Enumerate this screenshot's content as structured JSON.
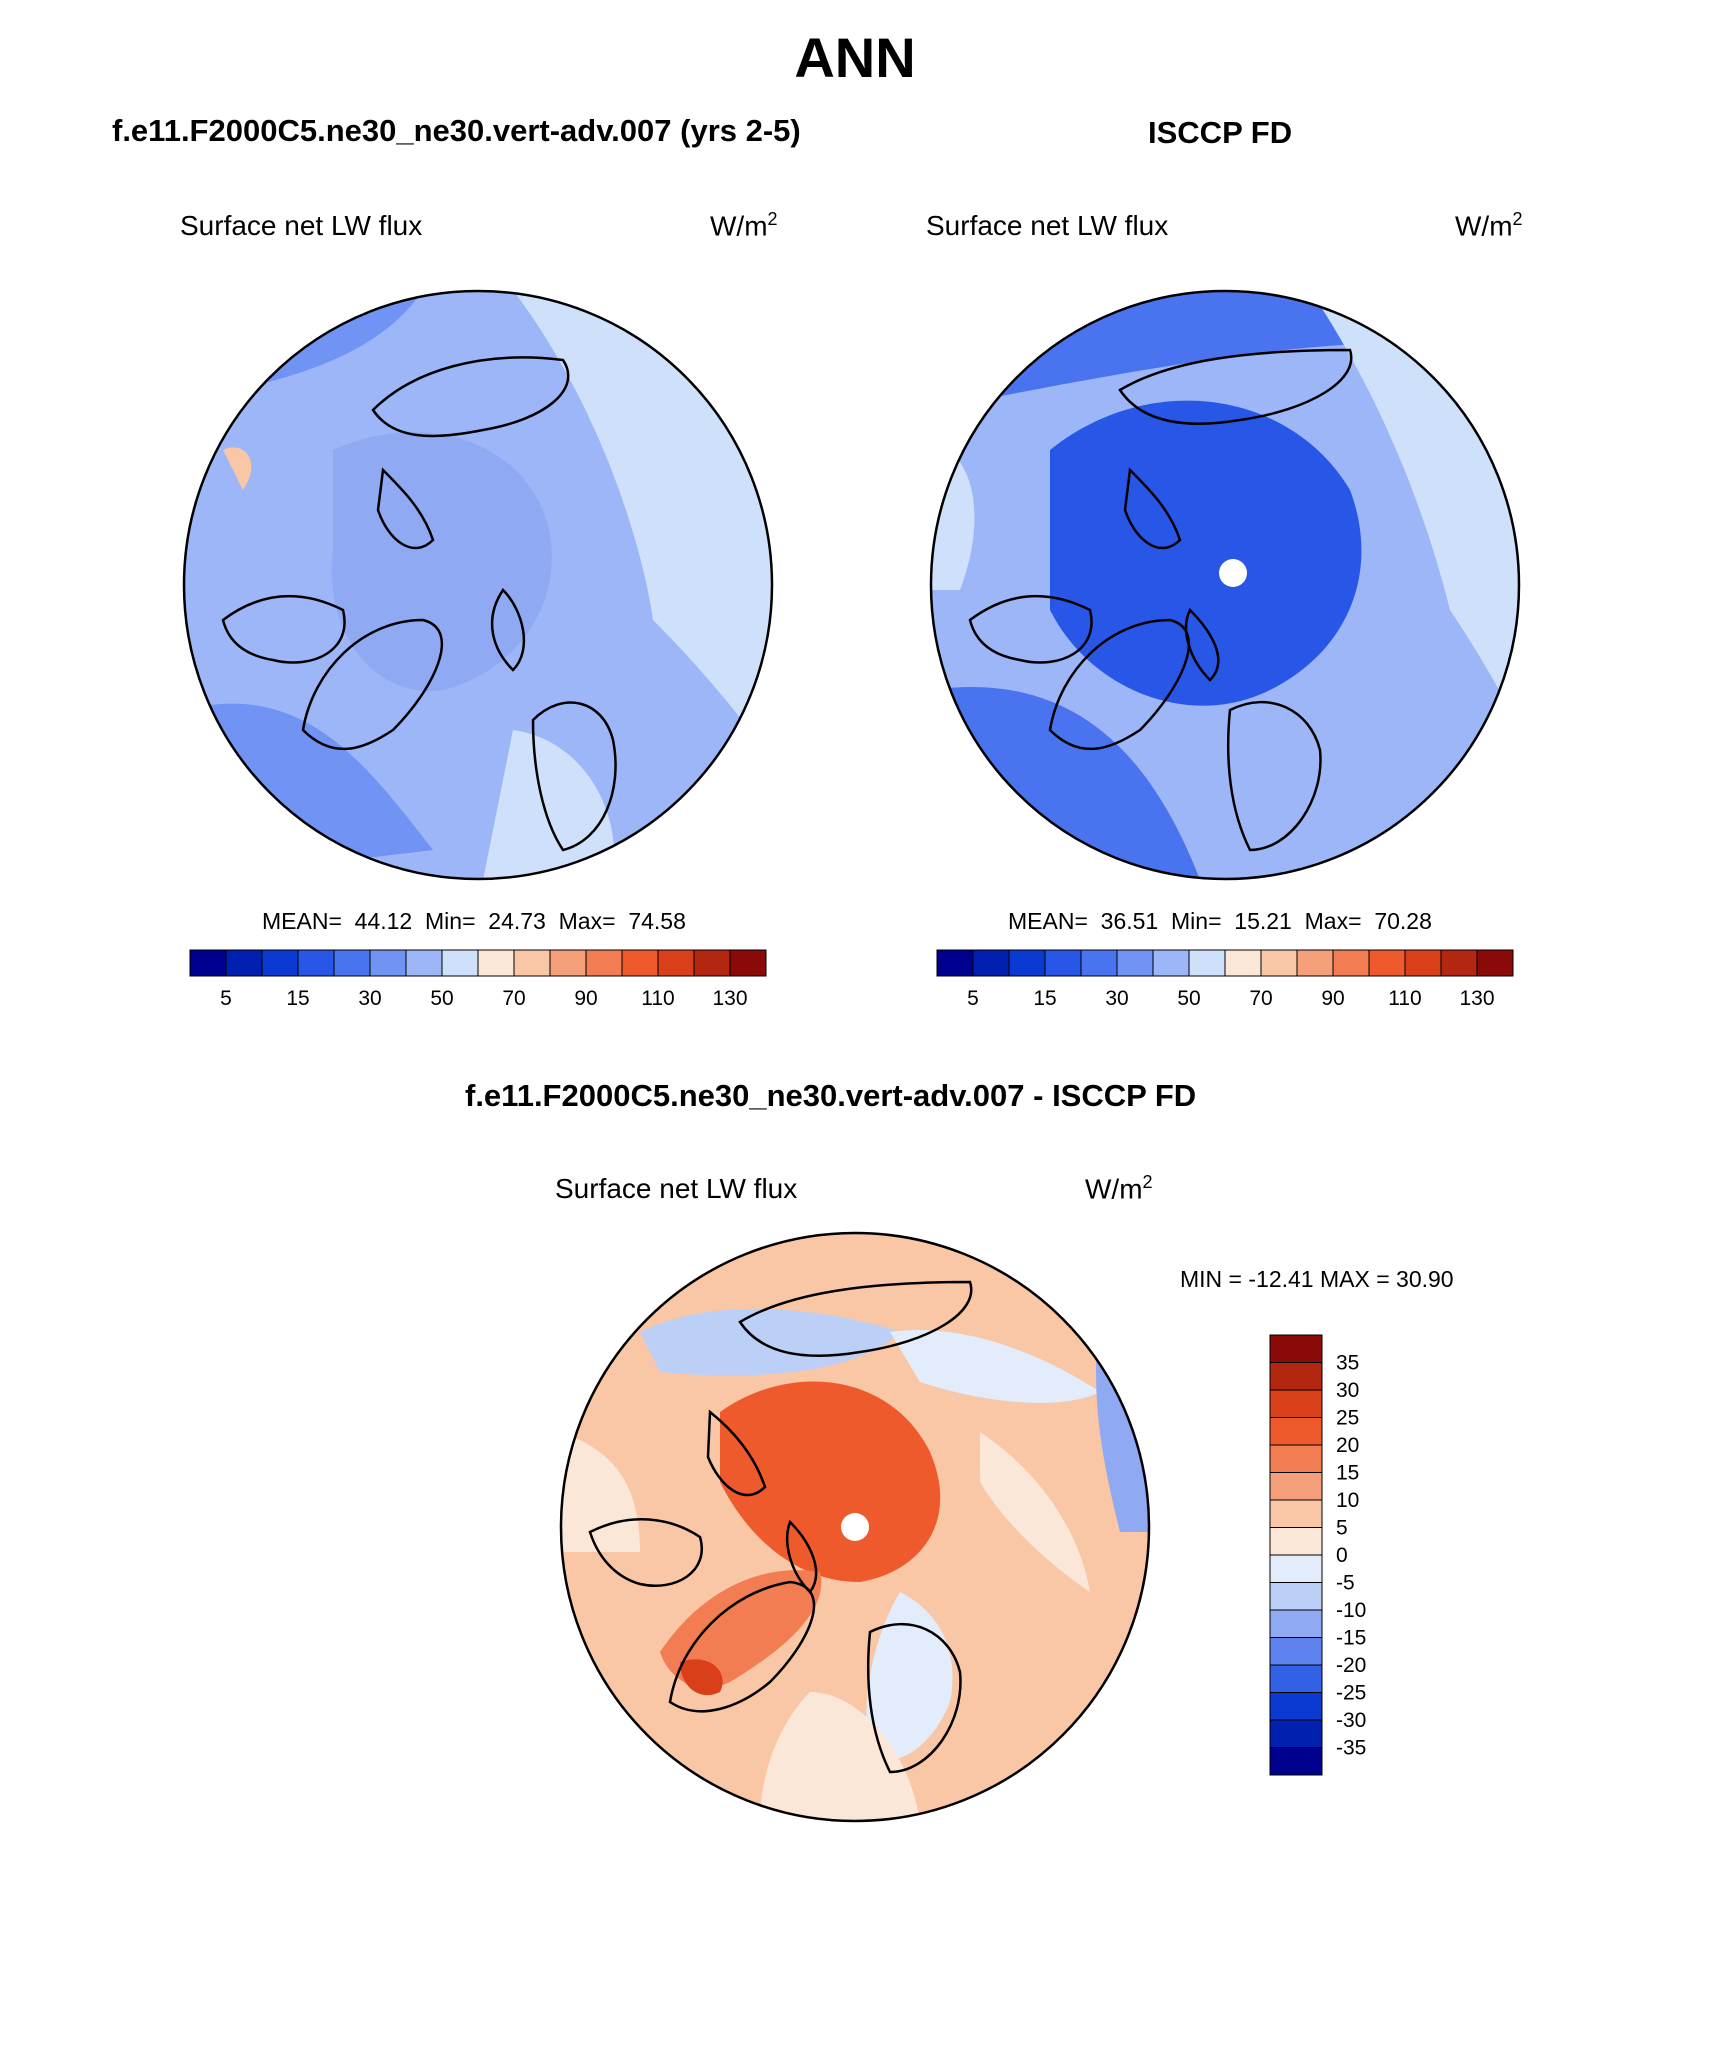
{
  "figure": {
    "season": "ANN"
  },
  "panels": [
    {
      "title": "f.e11.F2000C5.ne30_ne30.vert-adv.007 (yrs 2-5)",
      "variable": "Surface net LW flux",
      "units_base": "W/m",
      "units_exp": "2",
      "stats": {
        "mean_label": "MEAN=",
        "mean": "44.12",
        "min_label": "Min=",
        "min": "24.73",
        "max_label": "Max=",
        "max": "74.58"
      }
    },
    {
      "title": "ISCCP FD",
      "variable": "Surface net LW flux",
      "units_base": "W/m",
      "units_exp": "2",
      "stats": {
        "mean_label": "MEAN=",
        "mean": "36.51",
        "min_label": "Min=",
        "min": "15.21",
        "max_label": "Max=",
        "max": "70.28"
      }
    },
    {
      "title": "f.e11.F2000C5.ne30_ne30.vert-adv.007 - ISCCP FD",
      "variable": "Surface net LW flux",
      "units_base": "W/m",
      "units_exp": "2",
      "minmax": "MIN = -12.41 MAX =  30.90"
    }
  ],
  "colorbar_abs": {
    "tick_labels": [
      "5",
      "15",
      "30",
      "50",
      "70",
      "90",
      "110",
      "130"
    ],
    "colors": [
      "#00008f",
      "#0020b0",
      "#0a3ad2",
      "#2857e8",
      "#4a74ef",
      "#7093f4",
      "#9cb6f8",
      "#cfe0fb",
      "#fbe7d7",
      "#f9c6a6",
      "#f5a07a",
      "#f27d52",
      "#ee5a2c",
      "#d9401a",
      "#b32610",
      "#8a0a0a"
    ]
  },
  "colorbar_diff": {
    "tick_labels": [
      "35",
      "30",
      "25",
      "20",
      "15",
      "10",
      "5",
      "0",
      "-5",
      "-10",
      "-15",
      "-20",
      "-25",
      "-30",
      "-35"
    ],
    "colors": [
      "#8a0a0a",
      "#b32610",
      "#d9401a",
      "#ee5a2c",
      "#f27d52",
      "#f5a07a",
      "#f9c6a6",
      "#fbe7d7",
      "#e2ecfb",
      "#bcd0f7",
      "#8fa9f3",
      "#5f83ee",
      "#3361e6",
      "#0a3ad2",
      "#0020b0",
      "#00008f"
    ]
  },
  "map_fill": {
    "model": "#8fa9f3",
    "obs": "#7093f4",
    "diff": "#f9c6a6"
  }
}
